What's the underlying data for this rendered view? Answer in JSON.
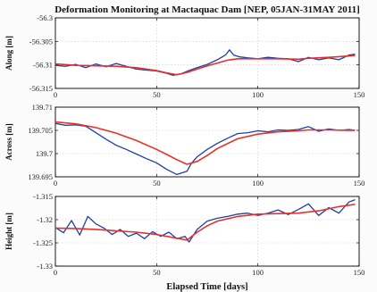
{
  "figure": {
    "title": "Deformation Monitoring at Mactaquac Dam [NEP, 05JAN-31MAY 2011]",
    "xlabel": "Elapsed Time [days]"
  },
  "colors": {
    "observed": "#1f3fa8",
    "fitted": "#e8302a"
  },
  "chart_data": [
    {
      "type": "line",
      "ylabel": "Along [m]",
      "xlim": [
        0,
        150
      ],
      "ylim": [
        -56.315,
        -56.3
      ],
      "xticks": [
        "0",
        "50",
        "100",
        "150"
      ],
      "yticks": [
        "-56.3",
        "-56.305",
        "-56.31",
        "-56.315"
      ],
      "grid": true,
      "series": [
        {
          "role": "observed",
          "x": [
            0,
            5,
            10,
            15,
            20,
            25,
            30,
            35,
            40,
            45,
            50,
            55,
            58,
            62,
            66,
            70,
            75,
            80,
            84,
            86,
            88,
            91,
            95,
            100,
            105,
            110,
            115,
            120,
            125,
            130,
            135,
            140,
            145,
            148
          ],
          "y": [
            -56.3101,
            -56.3103,
            -56.3099,
            -56.3106,
            -56.3098,
            -56.3104,
            -56.3097,
            -56.3103,
            -56.3109,
            -56.3111,
            -56.3113,
            -56.3118,
            -56.3122,
            -56.3119,
            -56.3112,
            -56.3106,
            -56.3099,
            -56.3089,
            -56.3079,
            -56.3068,
            -56.3079,
            -56.3083,
            -56.3085,
            -56.3087,
            -56.3084,
            -56.3086,
            -56.3087,
            -56.3093,
            -56.3084,
            -56.3089,
            -56.3085,
            -56.3089,
            -56.3079,
            -56.3077
          ]
        },
        {
          "role": "fitted",
          "x": [
            0,
            10,
            20,
            30,
            40,
            50,
            55,
            60,
            65,
            70,
            75,
            80,
            85,
            90,
            100,
            110,
            120,
            125,
            135,
            145,
            148
          ],
          "y": [
            -56.3098,
            -56.3101,
            -56.3102,
            -56.3103,
            -56.3106,
            -56.3112,
            -56.3117,
            -56.3121,
            -56.3116,
            -56.3109,
            -56.3102,
            -56.3096,
            -56.309,
            -56.3087,
            -56.3087,
            -56.3087,
            -56.3088,
            -56.3086,
            -56.3084,
            -56.3081,
            -56.308
          ]
        }
      ]
    },
    {
      "type": "line",
      "ylabel": "Across [m]",
      "xlim": [
        0,
        150
      ],
      "ylim": [
        139.695,
        139.71
      ],
      "xticks": [
        "0",
        "50",
        "100",
        "150"
      ],
      "yticks": [
        "139.71",
        "139.705",
        "139.7",
        "139.695"
      ],
      "grid": true,
      "series": [
        {
          "role": "observed",
          "x": [
            0,
            5,
            10,
            15,
            20,
            25,
            30,
            35,
            40,
            45,
            50,
            55,
            60,
            65,
            67,
            70,
            75,
            80,
            85,
            90,
            95,
            100,
            105,
            110,
            115,
            120,
            125,
            130,
            135,
            140,
            145,
            148
          ],
          "y": [
            139.7065,
            139.7061,
            139.7062,
            139.7059,
            139.7045,
            139.7031,
            139.7018,
            139.7009,
            139.6999,
            139.6989,
            139.698,
            139.6966,
            139.6955,
            139.6962,
            139.6978,
            139.6993,
            139.7009,
            139.7022,
            139.7033,
            139.7043,
            139.7045,
            139.7049,
            139.7047,
            139.7051,
            139.705,
            139.7052,
            139.7058,
            139.7048,
            139.7053,
            139.705,
            139.7052,
            139.705
          ]
        },
        {
          "role": "fitted",
          "x": [
            0,
            10,
            20,
            30,
            40,
            50,
            55,
            60,
            65,
            70,
            75,
            80,
            90,
            100,
            110,
            120,
            125,
            135,
            145,
            148
          ],
          "y": [
            139.7068,
            139.7064,
            139.7056,
            139.7044,
            139.7028,
            139.7009,
            139.6998,
            139.6987,
            139.6977,
            139.6983,
            139.6996,
            139.7011,
            139.7032,
            139.7042,
            139.7047,
            139.7049,
            139.7051,
            139.7051,
            139.705,
            139.705
          ]
        }
      ]
    },
    {
      "type": "line",
      "ylabel": "Height [m]",
      "xlim": [
        0,
        150
      ],
      "ylim": [
        -1.33,
        -1.315
      ],
      "xticks": [
        "0",
        "50",
        "100",
        "150"
      ],
      "yticks": [
        "-1.315",
        "-1.32",
        "-1.325",
        "-1.33"
      ],
      "grid": true,
      "series": [
        {
          "role": "observed",
          "x": [
            0,
            4,
            8,
            12,
            16,
            20,
            24,
            28,
            32,
            36,
            40,
            44,
            48,
            52,
            56,
            60,
            64,
            66,
            70,
            75,
            80,
            85,
            90,
            95,
            100,
            105,
            110,
            115,
            120,
            125,
            130,
            135,
            140,
            145,
            148
          ],
          "y": [
            -1.3217,
            -1.3228,
            -1.3202,
            -1.3233,
            -1.3193,
            -1.3209,
            -1.3218,
            -1.3232,
            -1.3221,
            -1.3236,
            -1.3229,
            -1.3241,
            -1.3226,
            -1.3236,
            -1.3227,
            -1.3241,
            -1.3236,
            -1.3248,
            -1.3221,
            -1.3203,
            -1.3197,
            -1.3193,
            -1.3188,
            -1.3186,
            -1.3191,
            -1.3186,
            -1.3179,
            -1.3189,
            -1.3178,
            -1.3166,
            -1.3191,
            -1.3174,
            -1.3186,
            -1.3162,
            -1.3157
          ]
        },
        {
          "role": "fitted",
          "x": [
            0,
            10,
            20,
            30,
            40,
            50,
            55,
            60,
            65,
            70,
            75,
            80,
            90,
            100,
            110,
            120,
            130,
            140,
            148
          ],
          "y": [
            -1.3218,
            -1.3219,
            -1.3221,
            -1.3224,
            -1.3227,
            -1.3232,
            -1.3236,
            -1.324,
            -1.3244,
            -1.3227,
            -1.3213,
            -1.3203,
            -1.3193,
            -1.3188,
            -1.3187,
            -1.3186,
            -1.3181,
            -1.3172,
            -1.3167
          ]
        }
      ]
    }
  ]
}
